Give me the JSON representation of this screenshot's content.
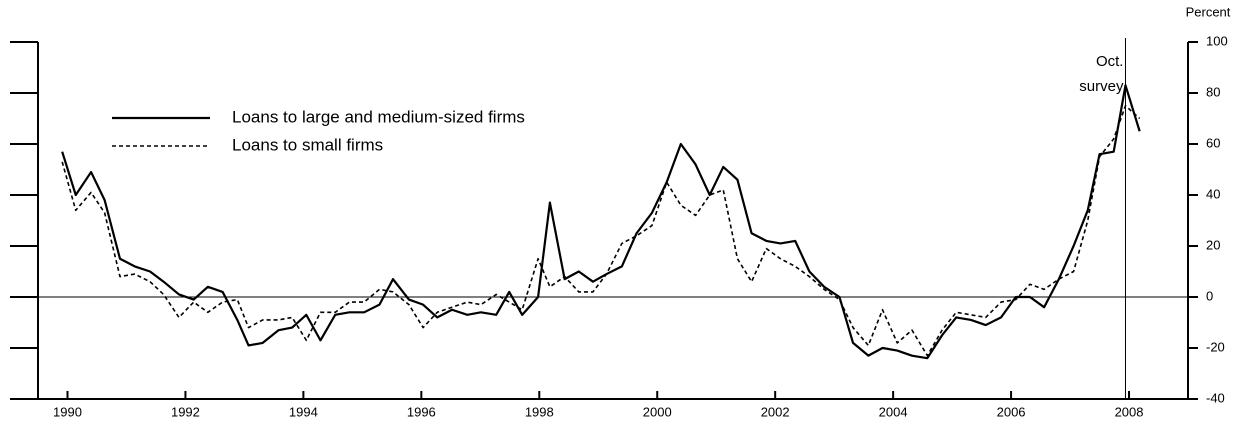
{
  "chart_data": {
    "type": "line",
    "y_axis_label": "Percent",
    "x": [
      1989.91,
      1990.14,
      1990.4,
      1990.63,
      1990.89,
      1991.14,
      1991.4,
      1991.63,
      1991.89,
      1992.14,
      1992.38,
      1992.63,
      1992.88,
      1993.07,
      1993.31,
      1993.58,
      1993.81,
      1994.05,
      1994.29,
      1994.54,
      1994.78,
      1995.03,
      1995.29,
      1995.52,
      1995.79,
      1996.03,
      1996.27,
      1996.52,
      1996.78,
      1997.01,
      1997.27,
      1997.49,
      1997.71,
      1997.98,
      1998.18,
      1998.43,
      1998.67,
      1998.91,
      1999.14,
      1999.4,
      1999.65,
      1999.91,
      2000.16,
      2000.4,
      2000.65,
      2000.89,
      2001.12,
      2001.36,
      2001.6,
      2001.85,
      2002.09,
      2002.34,
      2002.58,
      2002.83,
      2003.09,
      2003.32,
      2003.58,
      2003.82,
      2004.07,
      2004.32,
      2004.58,
      2004.83,
      2005.07,
      2005.32,
      2005.57,
      2005.83,
      2006.08,
      2006.32,
      2006.56,
      2006.81,
      2007.06,
      2007.3,
      2007.5,
      2007.74,
      2007.94,
      2008.18
    ],
    "series": [
      {
        "name": "Loans to large and medium-sized firms",
        "color": "#000000",
        "line_style": "solid",
        "values": [
          57,
          40,
          49,
          38,
          15,
          12,
          10,
          6,
          1,
          -1,
          4,
          2,
          -9,
          -19,
          -18,
          -13,
          -12,
          -7,
          -17,
          -7,
          -6,
          -6,
          -3,
          7,
          -1,
          -3,
          -8,
          -5,
          -7,
          -6,
          -7,
          2,
          -7,
          0,
          37,
          7,
          10,
          6,
          9,
          12,
          25,
          33,
          45,
          60,
          52,
          40,
          51,
          46,
          25,
          22,
          21,
          22,
          10,
          4,
          0,
          -18,
          -23,
          -20,
          -21,
          -23,
          -24,
          -15,
          -8,
          -9,
          -11,
          -8,
          0,
          0,
          -4,
          7,
          20,
          34,
          56,
          57,
          83,
          65
        ]
      },
      {
        "name": "Loans to small firms",
        "color": "#000000",
        "line_style": "dashed",
        "values": [
          53,
          34,
          41,
          33,
          8,
          9,
          6,
          1,
          -8,
          -2,
          -6,
          -2,
          -1,
          -12,
          -9,
          -9,
          -8,
          -17,
          -6,
          -6,
          -2,
          -2,
          3,
          2,
          -3,
          -12,
          -6,
          -4,
          -2,
          -3,
          1,
          -2,
          -5,
          15,
          4,
          8,
          2,
          2,
          9,
          21,
          24,
          28,
          45,
          36,
          32,
          40,
          42,
          15,
          6,
          19,
          15,
          12,
          8,
          3,
          -1,
          -12,
          -19,
          -5,
          -18,
          -13,
          -23,
          -13,
          -6,
          -7,
          -8,
          -2,
          -1,
          5,
          3,
          7,
          10,
          30,
          55,
          62,
          75,
          70
        ]
      }
    ],
    "xlim": [
      1989.5,
      2009.0
    ],
    "xticks": [
      1990,
      1992,
      1994,
      1996,
      1998,
      2000,
      2002,
      2004,
      2006,
      2008
    ],
    "ylim": [
      -40,
      100
    ],
    "yticks": [
      -40,
      -20,
      0,
      20,
      40,
      60,
      80,
      100
    ],
    "zero_line": true,
    "annotation": {
      "lines": [
        "Oct.",
        "survey"
      ],
      "x": 2007.94
    },
    "legend": "upper-left"
  }
}
